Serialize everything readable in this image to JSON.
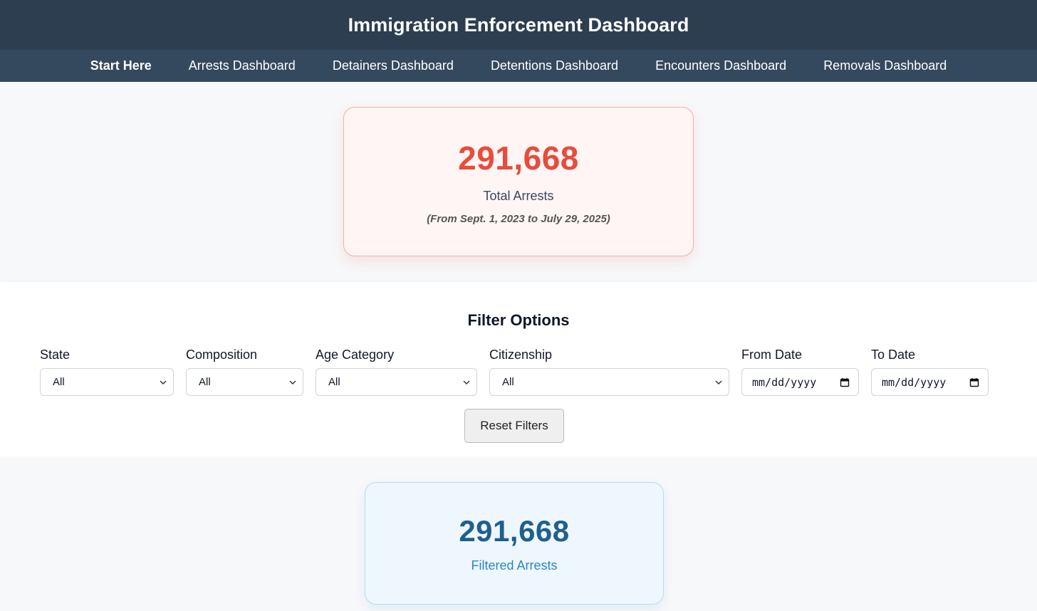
{
  "header": {
    "title": "Immigration Enforcement Dashboard"
  },
  "nav": {
    "items": [
      {
        "label": "Start Here"
      },
      {
        "label": "Arrests Dashboard"
      },
      {
        "label": "Detainers Dashboard"
      },
      {
        "label": "Detentions Dashboard"
      },
      {
        "label": "Encounters Dashboard"
      },
      {
        "label": "Removals Dashboard"
      }
    ]
  },
  "total_card": {
    "value": "291,668",
    "label": "Total Arrests",
    "range": "(From Sept. 1, 2023 to July 29, 2025)",
    "color": "#e74c3c"
  },
  "filters": {
    "title": "Filter Options",
    "state": {
      "label": "State",
      "value": "All"
    },
    "composition": {
      "label": "Composition",
      "value": "All"
    },
    "age_category": {
      "label": "Age Category",
      "value": "All"
    },
    "citizenship": {
      "label": "Citizenship",
      "value": "All"
    },
    "from_date": {
      "label": "From Date",
      "placeholder": "mm/dd/yyyy"
    },
    "to_date": {
      "label": "To Date",
      "placeholder": "mm/dd/yyyy"
    },
    "reset_label": "Reset Filters"
  },
  "filtered_card": {
    "value": "291,668",
    "label": "Filtered Arrests",
    "color": "#1f5f8b"
  },
  "icons": {
    "select": "chevron-down-icon",
    "date": "calendar-icon"
  }
}
